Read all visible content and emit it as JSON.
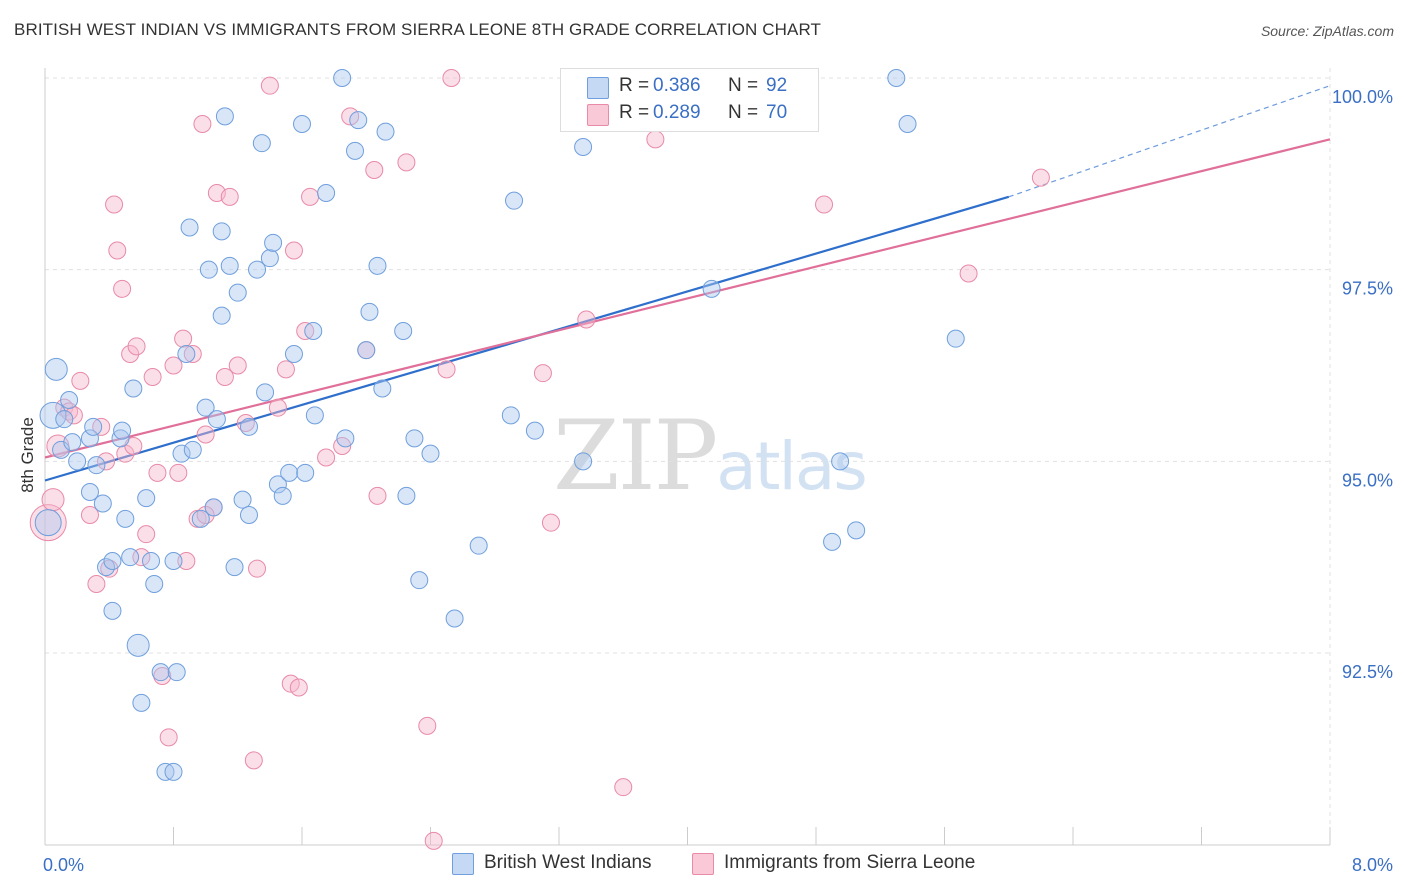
{
  "title": "BRITISH WEST INDIAN VS IMMIGRANTS FROM SIERRA LEONE 8TH GRADE CORRELATION CHART",
  "source": "Source: ZipAtlas.com",
  "watermark": {
    "zip": "ZIP",
    "atlas": "atlas"
  },
  "legend": {
    "rows": [
      {
        "r_label": "R =",
        "r_value": "0.386",
        "n_label": "N =",
        "n_value": "92",
        "color": "#aac7f0"
      },
      {
        "r_label": "R =",
        "r_value": "0.289",
        "n_label": "N =",
        "n_value": "70",
        "color": "#f7b8cc"
      }
    ]
  },
  "bottom_legend": [
    {
      "label": "British West Indians",
      "color": "#aac7f0"
    },
    {
      "label": "Immigrants from Sierra Leone",
      "color": "#f7b8cc"
    }
  ],
  "colors": {
    "blue_fill": "#aac7f0",
    "blue_stroke": "#6f9fdc",
    "blue_line": "#2f6fcc",
    "pink_fill": "#f7b8cc",
    "pink_stroke": "#e88aa8",
    "pink_line": "#e07099",
    "axis_label": "#3a6fc4",
    "grid": "#e0e0e0"
  },
  "chart_data": {
    "type": "scatter",
    "title": "BRITISH WEST INDIAN VS IMMIGRANTS FROM SIERRA LEONE 8TH GRADE CORRELATION CHART",
    "xlabel": "",
    "ylabel": "8th Grade",
    "xlim": [
      0.0,
      8.0
    ],
    "ylim": [
      90.0,
      100.2
    ],
    "x_tick_labels": [
      "0.0%",
      "8.0%"
    ],
    "y_ticks": [
      92.5,
      95.0,
      97.5,
      100.0
    ],
    "y_tick_labels": [
      "92.5%",
      "95.0%",
      "97.5%",
      "100.0%"
    ],
    "series": [
      {
        "name": "British West Indians",
        "r": 0.386,
        "n": 92,
        "trend": {
          "x0": 0.0,
          "y0": 94.75,
          "x1": 6.0,
          "y1": 98.45,
          "x_ext": 8.0,
          "y_ext": 99.9
        },
        "points": [
          {
            "x": 0.05,
            "y": 95.6,
            "s": 3
          },
          {
            "x": 0.07,
            "y": 96.2,
            "s": 2
          },
          {
            "x": 0.1,
            "y": 95.15,
            "s": 1
          },
          {
            "x": 0.12,
            "y": 95.55,
            "s": 1
          },
          {
            "x": 0.15,
            "y": 95.8,
            "s": 1
          },
          {
            "x": 0.17,
            "y": 95.25,
            "s": 1
          },
          {
            "x": 0.2,
            "y": 95.0,
            "s": 1
          },
          {
            "x": 0.28,
            "y": 95.3,
            "s": 1
          },
          {
            "x": 0.28,
            "y": 94.6,
            "s": 1
          },
          {
            "x": 0.32,
            "y": 94.95,
            "s": 1
          },
          {
            "x": 0.36,
            "y": 94.45,
            "s": 1
          },
          {
            "x": 0.38,
            "y": 93.62,
            "s": 1
          },
          {
            "x": 0.42,
            "y": 93.7,
            "s": 1
          },
          {
            "x": 0.42,
            "y": 93.05,
            "s": 1
          },
          {
            "x": 0.47,
            "y": 95.3,
            "s": 1
          },
          {
            "x": 0.5,
            "y": 94.25,
            "s": 1
          },
          {
            "x": 0.53,
            "y": 93.75,
            "s": 1
          },
          {
            "x": 0.55,
            "y": 95.95,
            "s": 1
          },
          {
            "x": 0.58,
            "y": 92.6,
            "s": 2
          },
          {
            "x": 0.6,
            "y": 91.85,
            "s": 1
          },
          {
            "x": 0.63,
            "y": 94.52,
            "s": 1
          },
          {
            "x": 0.66,
            "y": 93.7,
            "s": 1
          },
          {
            "x": 0.68,
            "y": 93.4,
            "s": 1
          },
          {
            "x": 0.72,
            "y": 92.25,
            "s": 1
          },
          {
            "x": 0.75,
            "y": 90.95,
            "s": 1
          },
          {
            "x": 0.8,
            "y": 93.7,
            "s": 1
          },
          {
            "x": 0.8,
            "y": 90.95,
            "s": 1
          },
          {
            "x": 0.82,
            "y": 92.25,
            "s": 1
          },
          {
            "x": 0.85,
            "y": 95.1,
            "s": 1
          },
          {
            "x": 0.88,
            "y": 96.4,
            "s": 1
          },
          {
            "x": 0.9,
            "y": 98.05,
            "s": 1
          },
          {
            "x": 0.92,
            "y": 95.15,
            "s": 1
          },
          {
            "x": 0.97,
            "y": 94.25,
            "s": 1
          },
          {
            "x": 1.0,
            "y": 95.7,
            "s": 1
          },
          {
            "x": 1.02,
            "y": 97.5,
            "s": 1
          },
          {
            "x": 1.05,
            "y": 94.4,
            "s": 1
          },
          {
            "x": 1.07,
            "y": 95.55,
            "s": 1
          },
          {
            "x": 1.1,
            "y": 98.0,
            "s": 1
          },
          {
            "x": 1.12,
            "y": 99.5,
            "s": 1
          },
          {
            "x": 1.15,
            "y": 97.55,
            "s": 1
          },
          {
            "x": 1.18,
            "y": 93.62,
            "s": 1
          },
          {
            "x": 1.2,
            "y": 97.2,
            "s": 1
          },
          {
            "x": 1.23,
            "y": 94.5,
            "s": 1
          },
          {
            "x": 1.27,
            "y": 95.45,
            "s": 1
          },
          {
            "x": 1.27,
            "y": 94.3,
            "s": 1
          },
          {
            "x": 1.32,
            "y": 97.5,
            "s": 1
          },
          {
            "x": 1.35,
            "y": 99.15,
            "s": 1
          },
          {
            "x": 1.37,
            "y": 95.9,
            "s": 1
          },
          {
            "x": 1.4,
            "y": 97.65,
            "s": 1
          },
          {
            "x": 1.42,
            "y": 97.85,
            "s": 1
          },
          {
            "x": 1.45,
            "y": 94.7,
            "s": 1
          },
          {
            "x": 1.48,
            "y": 94.55,
            "s": 1
          },
          {
            "x": 1.52,
            "y": 94.85,
            "s": 1
          },
          {
            "x": 1.55,
            "y": 96.4,
            "s": 1
          },
          {
            "x": 1.6,
            "y": 99.4,
            "s": 1
          },
          {
            "x": 1.62,
            "y": 94.85,
            "s": 1
          },
          {
            "x": 1.67,
            "y": 96.7,
            "s": 1
          },
          {
            "x": 1.68,
            "y": 95.6,
            "s": 1
          },
          {
            "x": 1.85,
            "y": 100.0,
            "s": 1
          },
          {
            "x": 1.87,
            "y": 95.3,
            "s": 1
          },
          {
            "x": 1.93,
            "y": 99.05,
            "s": 1
          },
          {
            "x": 1.95,
            "y": 99.45,
            "s": 1
          },
          {
            "x": 2.0,
            "y": 96.45,
            "s": 1
          },
          {
            "x": 2.02,
            "y": 96.95,
            "s": 1
          },
          {
            "x": 2.07,
            "y": 97.55,
            "s": 1
          },
          {
            "x": 2.1,
            "y": 95.95,
            "s": 1
          },
          {
            "x": 2.12,
            "y": 99.3,
            "s": 1
          },
          {
            "x": 2.23,
            "y": 96.7,
            "s": 1
          },
          {
            "x": 2.25,
            "y": 94.55,
            "s": 1
          },
          {
            "x": 2.3,
            "y": 95.3,
            "s": 1
          },
          {
            "x": 2.33,
            "y": 93.45,
            "s": 1
          },
          {
            "x": 2.4,
            "y": 95.1,
            "s": 1
          },
          {
            "x": 2.55,
            "y": 92.95,
            "s": 1
          },
          {
            "x": 2.7,
            "y": 93.9,
            "s": 1
          },
          {
            "x": 2.9,
            "y": 95.6,
            "s": 1
          },
          {
            "x": 2.92,
            "y": 98.4,
            "s": 1
          },
          {
            "x": 3.05,
            "y": 95.4,
            "s": 1
          },
          {
            "x": 3.35,
            "y": 99.1,
            "s": 1
          },
          {
            "x": 3.35,
            "y": 95.0,
            "s": 1
          },
          {
            "x": 4.1,
            "y": 99.95,
            "s": 1
          },
          {
            "x": 4.15,
            "y": 97.25,
            "s": 1
          },
          {
            "x": 4.95,
            "y": 95.0,
            "s": 1
          },
          {
            "x": 4.9,
            "y": 93.95,
            "s": 1
          },
          {
            "x": 5.05,
            "y": 94.1,
            "s": 1
          },
          {
            "x": 5.3,
            "y": 100.0,
            "s": 1
          },
          {
            "x": 5.37,
            "y": 99.4,
            "s": 1
          },
          {
            "x": 5.67,
            "y": 96.6,
            "s": 1
          },
          {
            "x": 0.02,
            "y": 94.2,
            "s": 3
          },
          {
            "x": 0.3,
            "y": 95.45,
            "s": 1
          },
          {
            "x": 0.48,
            "y": 95.4,
            "s": 1
          },
          {
            "x": 1.1,
            "y": 96.9,
            "s": 1
          },
          {
            "x": 1.75,
            "y": 98.5,
            "s": 1
          }
        ]
      },
      {
        "name": "Immigrants from Sierra Leone",
        "r": 0.289,
        "n": 70,
        "trend": {
          "x0": 0.0,
          "y0": 95.05,
          "x1": 8.0,
          "y1": 99.2
        },
        "points": [
          {
            "x": 0.02,
            "y": 94.2,
            "s": 4
          },
          {
            "x": 0.05,
            "y": 94.5,
            "s": 2
          },
          {
            "x": 0.08,
            "y": 95.2,
            "s": 2
          },
          {
            "x": 0.12,
            "y": 95.7,
            "s": 1
          },
          {
            "x": 0.15,
            "y": 95.65,
            "s": 1
          },
          {
            "x": 0.18,
            "y": 95.6,
            "s": 1
          },
          {
            "x": 0.22,
            "y": 96.05,
            "s": 1
          },
          {
            "x": 0.28,
            "y": 94.3,
            "s": 1
          },
          {
            "x": 0.32,
            "y": 93.4,
            "s": 1
          },
          {
            "x": 0.35,
            "y": 95.45,
            "s": 1
          },
          {
            "x": 0.4,
            "y": 93.6,
            "s": 1
          },
          {
            "x": 0.43,
            "y": 98.35,
            "s": 1
          },
          {
            "x": 0.45,
            "y": 97.75,
            "s": 1
          },
          {
            "x": 0.48,
            "y": 97.25,
            "s": 1
          },
          {
            "x": 0.5,
            "y": 95.1,
            "s": 1
          },
          {
            "x": 0.53,
            "y": 96.4,
            "s": 1
          },
          {
            "x": 0.57,
            "y": 96.5,
            "s": 1
          },
          {
            "x": 0.6,
            "y": 93.75,
            "s": 1
          },
          {
            "x": 0.63,
            "y": 94.05,
            "s": 1
          },
          {
            "x": 0.67,
            "y": 96.1,
            "s": 1
          },
          {
            "x": 0.7,
            "y": 94.85,
            "s": 1
          },
          {
            "x": 0.73,
            "y": 92.2,
            "s": 1
          },
          {
            "x": 0.77,
            "y": 91.4,
            "s": 1
          },
          {
            "x": 0.8,
            "y": 96.25,
            "s": 1
          },
          {
            "x": 0.83,
            "y": 94.85,
            "s": 1
          },
          {
            "x": 0.86,
            "y": 96.6,
            "s": 1
          },
          {
            "x": 0.88,
            "y": 93.7,
            "s": 1
          },
          {
            "x": 0.92,
            "y": 96.4,
            "s": 1
          },
          {
            "x": 0.95,
            "y": 94.25,
            "s": 1
          },
          {
            "x": 0.98,
            "y": 99.4,
            "s": 1
          },
          {
            "x": 1.0,
            "y": 95.35,
            "s": 1
          },
          {
            "x": 1.05,
            "y": 94.4,
            "s": 1
          },
          {
            "x": 1.07,
            "y": 98.5,
            "s": 1
          },
          {
            "x": 1.12,
            "y": 96.1,
            "s": 1
          },
          {
            "x": 1.15,
            "y": 98.45,
            "s": 1
          },
          {
            "x": 1.2,
            "y": 96.25,
            "s": 1
          },
          {
            "x": 1.25,
            "y": 95.5,
            "s": 1
          },
          {
            "x": 1.3,
            "y": 91.1,
            "s": 1
          },
          {
            "x": 1.32,
            "y": 93.6,
            "s": 1
          },
          {
            "x": 1.4,
            "y": 99.9,
            "s": 1
          },
          {
            "x": 1.45,
            "y": 95.7,
            "s": 1
          },
          {
            "x": 1.5,
            "y": 96.2,
            "s": 1
          },
          {
            "x": 1.53,
            "y": 92.1,
            "s": 1
          },
          {
            "x": 1.55,
            "y": 97.75,
            "s": 1
          },
          {
            "x": 1.58,
            "y": 92.05,
            "s": 1
          },
          {
            "x": 1.62,
            "y": 96.7,
            "s": 1
          },
          {
            "x": 1.65,
            "y": 98.45,
            "s": 1
          },
          {
            "x": 1.75,
            "y": 95.05,
            "s": 1
          },
          {
            "x": 1.85,
            "y": 95.2,
            "s": 1
          },
          {
            "x": 1.9,
            "y": 99.5,
            "s": 1
          },
          {
            "x": 2.0,
            "y": 96.45,
            "s": 1
          },
          {
            "x": 2.05,
            "y": 98.8,
            "s": 1
          },
          {
            "x": 2.07,
            "y": 94.55,
            "s": 1
          },
          {
            "x": 2.25,
            "y": 98.9,
            "s": 1
          },
          {
            "x": 2.38,
            "y": 91.55,
            "s": 1
          },
          {
            "x": 2.42,
            "y": 90.05,
            "s": 1
          },
          {
            "x": 2.5,
            "y": 96.2,
            "s": 1
          },
          {
            "x": 2.53,
            "y": 100.0,
            "s": 1
          },
          {
            "x": 3.1,
            "y": 96.15,
            "s": 1
          },
          {
            "x": 3.15,
            "y": 94.2,
            "s": 1
          },
          {
            "x": 3.3,
            "y": 100.0,
            "s": 1
          },
          {
            "x": 3.37,
            "y": 96.85,
            "s": 1
          },
          {
            "x": 3.6,
            "y": 90.75,
            "s": 1
          },
          {
            "x": 3.8,
            "y": 99.2,
            "s": 1
          },
          {
            "x": 4.85,
            "y": 98.35,
            "s": 1
          },
          {
            "x": 5.75,
            "y": 97.45,
            "s": 1
          },
          {
            "x": 6.2,
            "y": 98.7,
            "s": 1
          },
          {
            "x": 0.38,
            "y": 95.0,
            "s": 1
          },
          {
            "x": 0.55,
            "y": 95.2,
            "s": 1
          },
          {
            "x": 1.0,
            "y": 94.3,
            "s": 1
          }
        ]
      }
    ]
  }
}
